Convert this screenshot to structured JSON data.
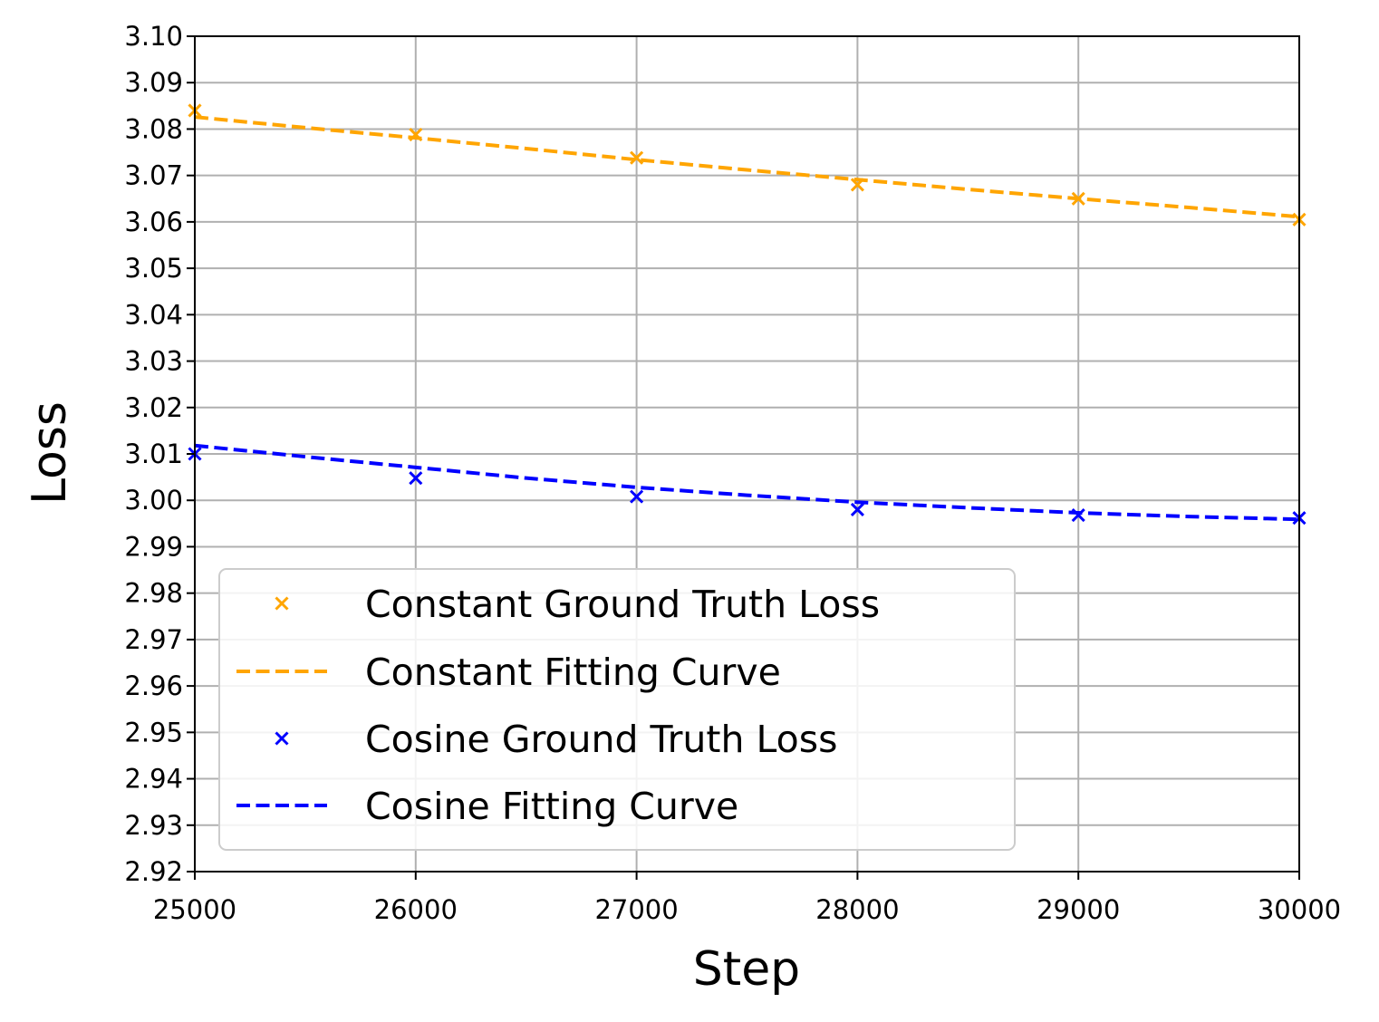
{
  "chart_data": {
    "type": "line",
    "title": "",
    "xlabel": "Step",
    "ylabel": "Loss",
    "xlim": [
      25000,
      30000
    ],
    "ylim": [
      2.92,
      3.1
    ],
    "grid": true,
    "legend_position": "lower-left",
    "xticks": [
      "25000",
      "26000",
      "27000",
      "28000",
      "29000",
      "30000"
    ],
    "yticks": [
      "2.92",
      "2.93",
      "2.94",
      "2.95",
      "2.96",
      "2.97",
      "2.98",
      "2.99",
      "3.00",
      "3.01",
      "3.02",
      "3.03",
      "3.04",
      "3.05",
      "3.06",
      "3.07",
      "3.08",
      "3.09",
      "3.10"
    ],
    "series": [
      {
        "name": "Constant Ground Truth Loss",
        "kind": "markers",
        "marker": "x",
        "color": "#FFA500",
        "x": [
          25000,
          26000,
          27000,
          28000,
          29000,
          30000
        ],
        "y": [
          3.084,
          3.0788,
          3.0738,
          3.068,
          3.065,
          3.0605
        ]
      },
      {
        "name": "Constant Fitting Curve",
        "kind": "dashed-line",
        "color": "#FFA500",
        "x": [
          25000,
          25500,
          26000,
          26500,
          27000,
          27500,
          28000,
          28500,
          29000,
          29500,
          30000
        ],
        "y": [
          3.0826,
          3.0803,
          3.0781,
          3.0758,
          3.0734,
          3.0712,
          3.0691,
          3.067,
          3.065,
          3.0631,
          3.0611
        ]
      },
      {
        "name": "Cosine Ground Truth Loss",
        "kind": "markers",
        "marker": "x",
        "color": "#0000FF",
        "x": [
          25000,
          26000,
          27000,
          28000,
          29000,
          30000
        ],
        "y": [
          3.01,
          3.0048,
          3.0008,
          2.998,
          2.9968,
          2.9962
        ]
      },
      {
        "name": "Cosine Fitting Curve",
        "kind": "dashed-line",
        "color": "#0000FF",
        "x": [
          25000,
          25500,
          26000,
          26500,
          27000,
          27500,
          28000,
          28500,
          29000,
          29500,
          30000
        ],
        "y": [
          3.0118,
          3.0094,
          3.0071,
          3.0048,
          3.0028,
          3.0011,
          2.9996,
          2.9984,
          2.9973,
          2.9965,
          2.9959
        ]
      }
    ]
  }
}
